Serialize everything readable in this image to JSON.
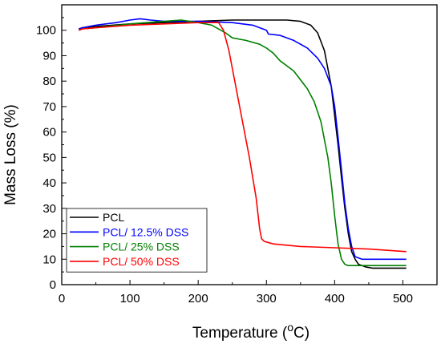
{
  "chart_data": {
    "type": "line",
    "title": "",
    "xlabel": "Temperature (",
    "xlabel_sup": "o",
    "xlabel_suffix": "C)",
    "ylabel": "Mass Loss (%)",
    "xlim": [
      0,
      550
    ],
    "ylim": [
      0,
      110
    ],
    "xticks": [
      0,
      100,
      200,
      300,
      400,
      500
    ],
    "yticks": [
      0,
      10,
      20,
      30,
      40,
      50,
      60,
      70,
      80,
      90,
      100
    ],
    "grid": false,
    "legend_position": "bottom-left",
    "series": [
      {
        "name": "PCL",
        "color": "#000000",
        "x": [
          25,
          30,
          50,
          100,
          150,
          200,
          250,
          300,
          330,
          350,
          365,
          375,
          385,
          395,
          405,
          410,
          415,
          420,
          425,
          430,
          435,
          445,
          455,
          470,
          490,
          505
        ],
        "y": [
          100.5,
          101,
          101.5,
          102.5,
          103,
          103.5,
          104,
          104,
          104,
          103.5,
          102,
          99,
          92,
          78,
          55,
          42,
          30,
          20,
          13,
          10,
          8,
          7,
          6.5,
          6.5,
          6.5,
          6.5
        ]
      },
      {
        "name": "PCL/ 12.5% DSS",
        "color": "#0000ff",
        "x": [
          25,
          30,
          50,
          80,
          100,
          115,
          130,
          150,
          200,
          250,
          280,
          300,
          303,
          320,
          340,
          360,
          375,
          385,
          395,
          400,
          405,
          410,
          415,
          420,
          425,
          430,
          440,
          460,
          480,
          505
        ],
        "y": [
          100.5,
          101,
          102,
          103,
          104,
          104.5,
          104,
          103.5,
          103.5,
          103,
          102,
          100,
          98.5,
          98,
          96,
          93,
          89,
          85,
          78,
          70,
          58,
          45,
          32,
          22,
          15,
          11,
          10,
          10,
          10,
          10
        ]
      },
      {
        "name": "PCL/ 25% DSS",
        "color": "#008000",
        "x": [
          25,
          30,
          50,
          100,
          150,
          175,
          200,
          220,
          240,
          250,
          270,
          290,
          300,
          310,
          320,
          340,
          360,
          370,
          380,
          390,
          395,
          400,
          405,
          410,
          415,
          420,
          440,
          460,
          480,
          505
        ],
        "y": [
          100,
          100.5,
          101,
          102.5,
          103.5,
          104,
          103,
          102,
          99,
          97,
          96,
          94.5,
          93,
          91,
          88,
          84,
          77,
          72,
          64,
          50,
          40,
          27,
          16,
          10,
          8,
          7.5,
          7.5,
          7.5,
          7.5,
          7.5
        ]
      },
      {
        "name": "PCL/ 50% DSS",
        "color": "#ff0000",
        "x": [
          25,
          30,
          50,
          100,
          150,
          200,
          230,
          237,
          245,
          255,
          265,
          275,
          285,
          290,
          293,
          297,
          310,
          350,
          400,
          450,
          505
        ],
        "y": [
          100,
          100.5,
          101,
          102,
          102.5,
          103,
          103,
          100,
          92,
          78,
          64,
          50,
          34,
          22,
          18,
          17,
          16,
          15,
          14.5,
          14,
          13
        ]
      }
    ]
  }
}
